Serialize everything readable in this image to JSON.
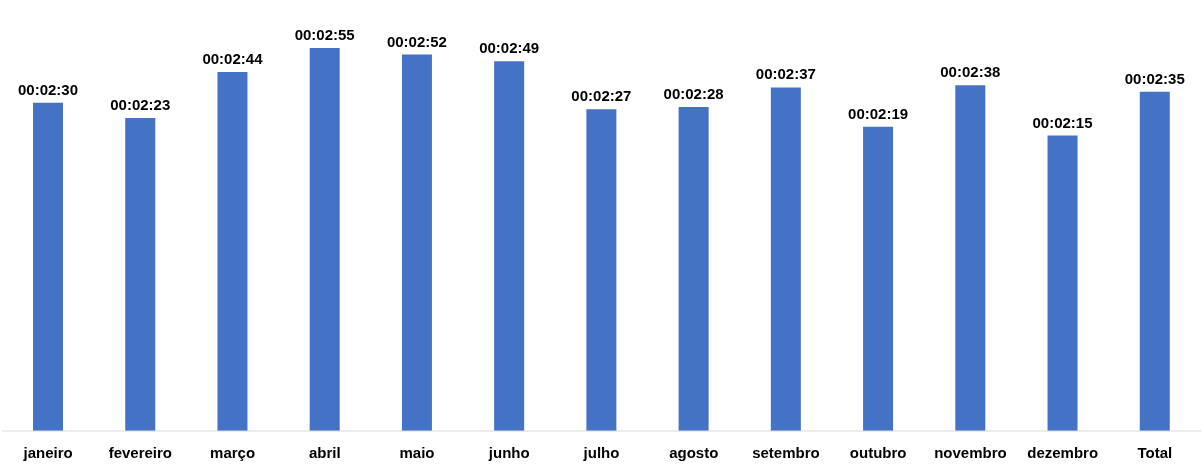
{
  "chart_data": {
    "type": "bar",
    "categories": [
      "janeiro",
      "fevereiro",
      "março",
      "abril",
      "maio",
      "junho",
      "julho",
      "agosto",
      "setembro",
      "outubro",
      "novembro",
      "dezembro",
      "Total"
    ],
    "values": [
      150,
      143,
      164,
      175,
      172,
      169,
      147,
      148,
      157,
      139,
      158,
      135,
      155
    ],
    "value_labels": [
      "00:02:30",
      "00:02:23",
      "00:02:44",
      "00:02:55",
      "00:02:52",
      "00:02:49",
      "00:02:27",
      "00:02:28",
      "00:02:37",
      "00:02:19",
      "00:02:38",
      "00:02:15",
      "00:02:35"
    ],
    "color": "#4472c4",
    "grid": false,
    "legend": false
  }
}
